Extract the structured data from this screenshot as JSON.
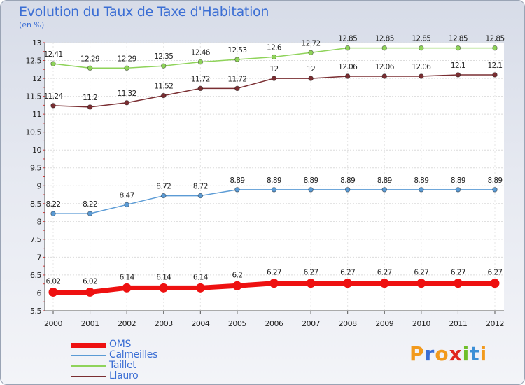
{
  "title": "Evolution du Taux de Taxe d'Habitation",
  "unit_label": "(en %)",
  "brand": "Proxiti",
  "chart_data": {
    "type": "line",
    "title": "Evolution du Taux de Taxe d'Habitation",
    "ylabel": "(en %)",
    "xlabel": "",
    "ylim": [
      5.5,
      13
    ],
    "y_ticks": [
      "5.5",
      "6",
      "6.5",
      "7",
      "7.5",
      "8",
      "8.5",
      "9",
      "9.5",
      "10",
      "10.5",
      "11",
      "11.5",
      "12",
      "12.5",
      "13"
    ],
    "x": [
      "2000",
      "2001",
      "2002",
      "2003",
      "2004",
      "2005",
      "2006",
      "2007",
      "2008",
      "2009",
      "2010",
      "2011",
      "2012"
    ],
    "series": [
      {
        "name": "OMS",
        "color": "#ee1111",
        "emphasis": true,
        "values": [
          6.02,
          6.02,
          6.14,
          6.14,
          6.14,
          6.2,
          6.27,
          6.27,
          6.27,
          6.27,
          6.27,
          6.27,
          6.27
        ],
        "labels": [
          "6.02",
          "6.02",
          "6.14",
          "6.14",
          "6.14",
          "6.2",
          "6.27",
          "6.27",
          "6.27",
          "6.27",
          "6.27",
          "6.27",
          "6.27"
        ]
      },
      {
        "name": "Calmeilles",
        "color": "#5b9bd5",
        "values": [
          8.22,
          8.22,
          8.47,
          8.72,
          8.72,
          8.89,
          8.89,
          8.89,
          8.89,
          8.89,
          8.89,
          8.89,
          8.89
        ],
        "labels": [
          "8.22",
          "8.22",
          "8.47",
          "8.72",
          "8.72",
          "8.89",
          "8.89",
          "8.89",
          "8.89",
          "8.89",
          "8.89",
          "8.89",
          "8.89"
        ]
      },
      {
        "name": "Taillet",
        "color": "#8fd35a",
        "values": [
          12.41,
          12.29,
          12.29,
          12.35,
          12.46,
          12.53,
          12.6,
          12.72,
          12.85,
          12.85,
          12.85,
          12.85,
          12.85
        ],
        "labels": [
          "12.41",
          "12.29",
          "12.29",
          "12.35",
          "12.46",
          "12.53",
          "12.6",
          "12.72",
          "12.85",
          "12.85",
          "12.85",
          "12.85",
          "12.85"
        ]
      },
      {
        "name": "Llauro",
        "color": "#7a2e32",
        "values": [
          11.24,
          11.2,
          11.32,
          11.52,
          11.72,
          11.72,
          12,
          12,
          12.06,
          12.06,
          12.06,
          12.1,
          12.1
        ],
        "labels": [
          "11.24",
          "11.2",
          "11.32",
          "11.52",
          "11.72",
          "11.72",
          "12",
          "12",
          "12.06",
          "12.06",
          "12.06",
          "12.1",
          "12.1"
        ]
      }
    ],
    "legend_position": "bottom-left"
  }
}
